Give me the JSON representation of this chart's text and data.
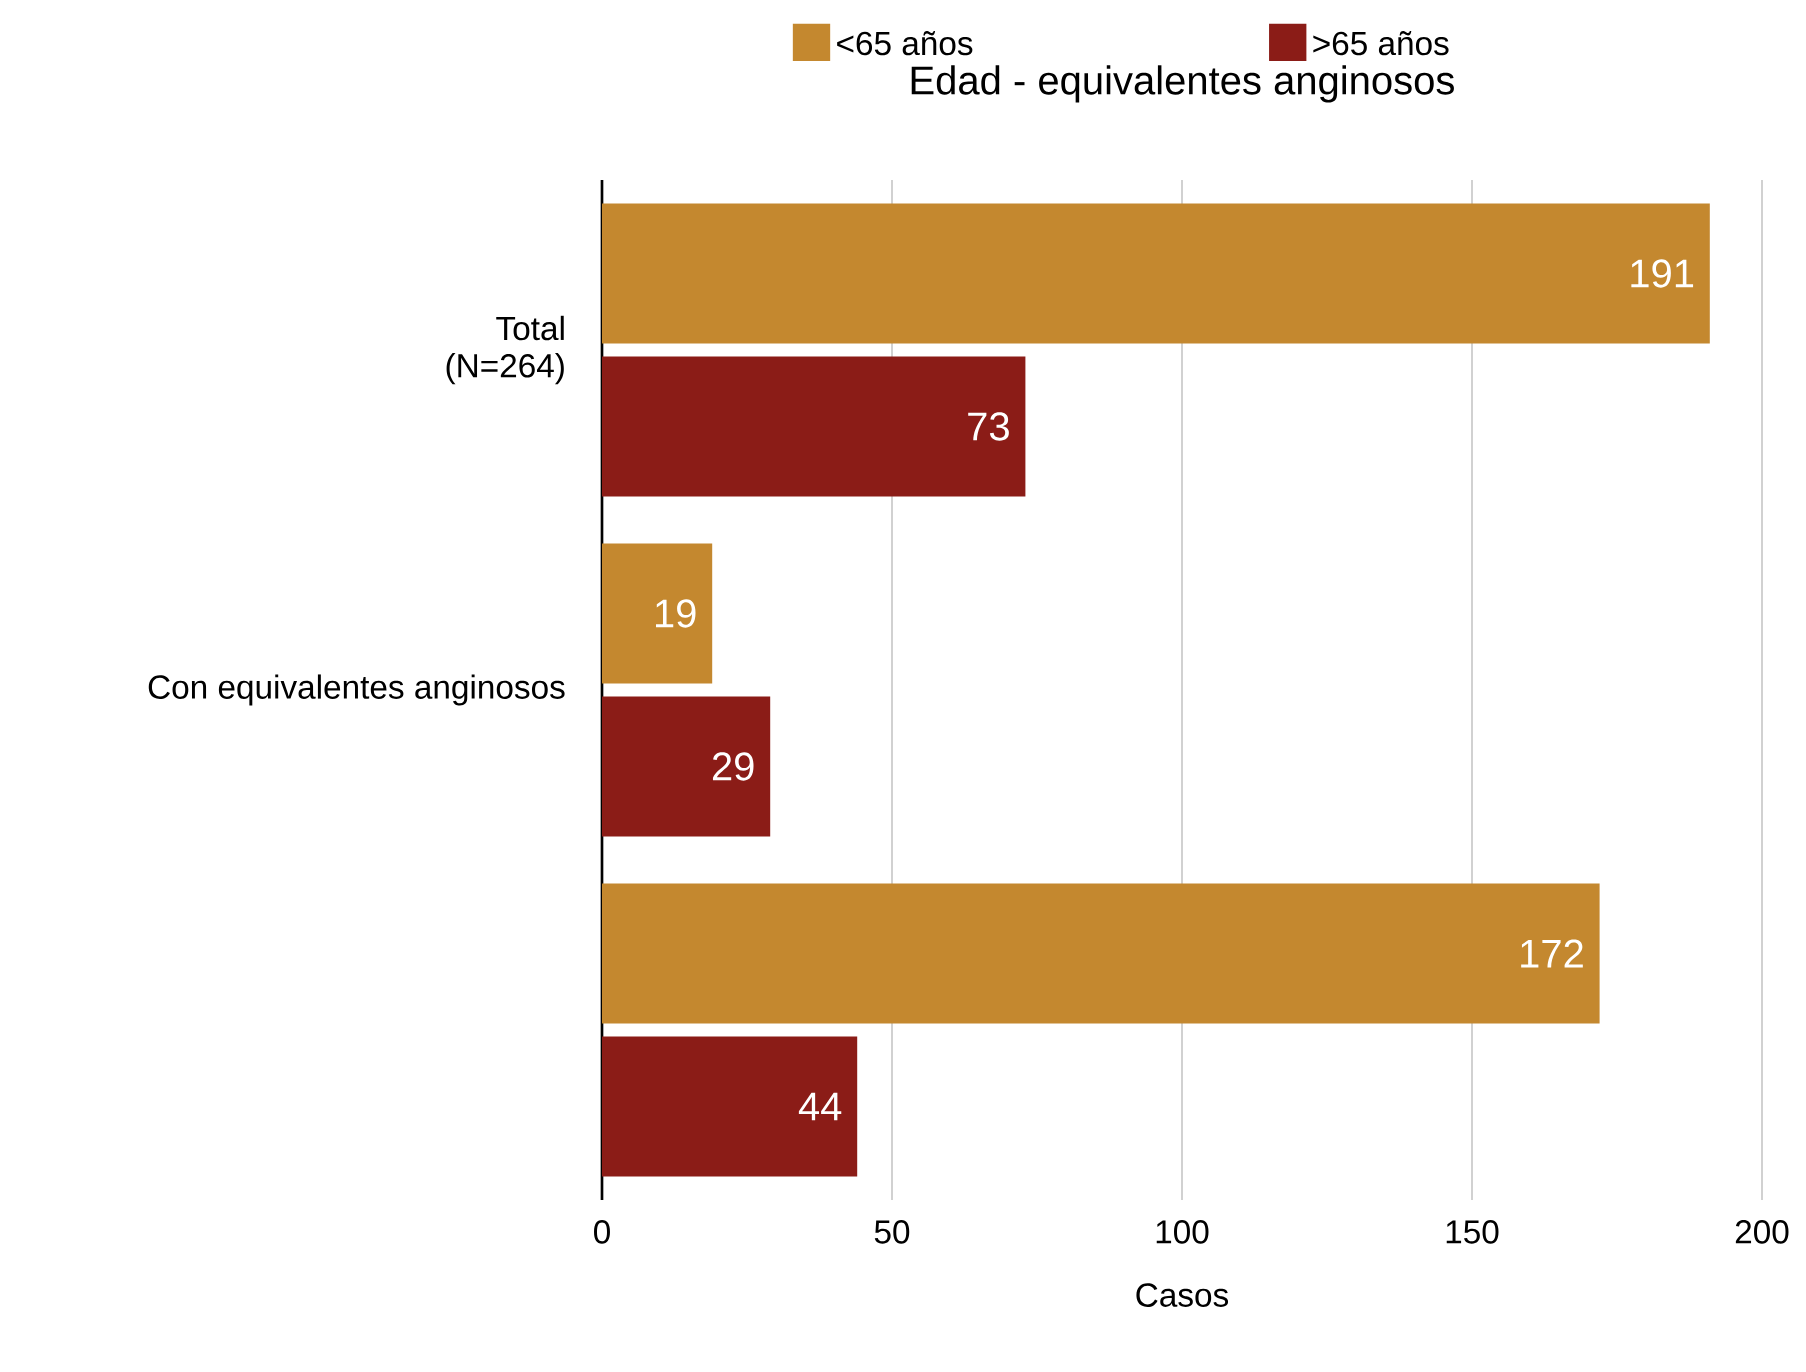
{
  "chart_data": {
    "type": "bar",
    "orientation": "horizontal",
    "title": "Edad - equivalentes anginosos",
    "xlabel": "Casos",
    "categories": [
      "Total (N=264)",
      "Con equivalentes anginosos",
      null
    ],
    "series": [
      {
        "name": "<65 años",
        "color": "#c4882f",
        "values": [
          191,
          19,
          172
        ]
      },
      {
        "name": ">65 años",
        "color": "#8b1c17",
        "values": [
          73,
          29,
          44
        ]
      }
    ],
    "xlim": [
      0,
      200
    ],
    "xticks": [
      0,
      50,
      100,
      150,
      200
    ],
    "grid": "x",
    "legend": "top",
    "data_labels": true
  }
}
